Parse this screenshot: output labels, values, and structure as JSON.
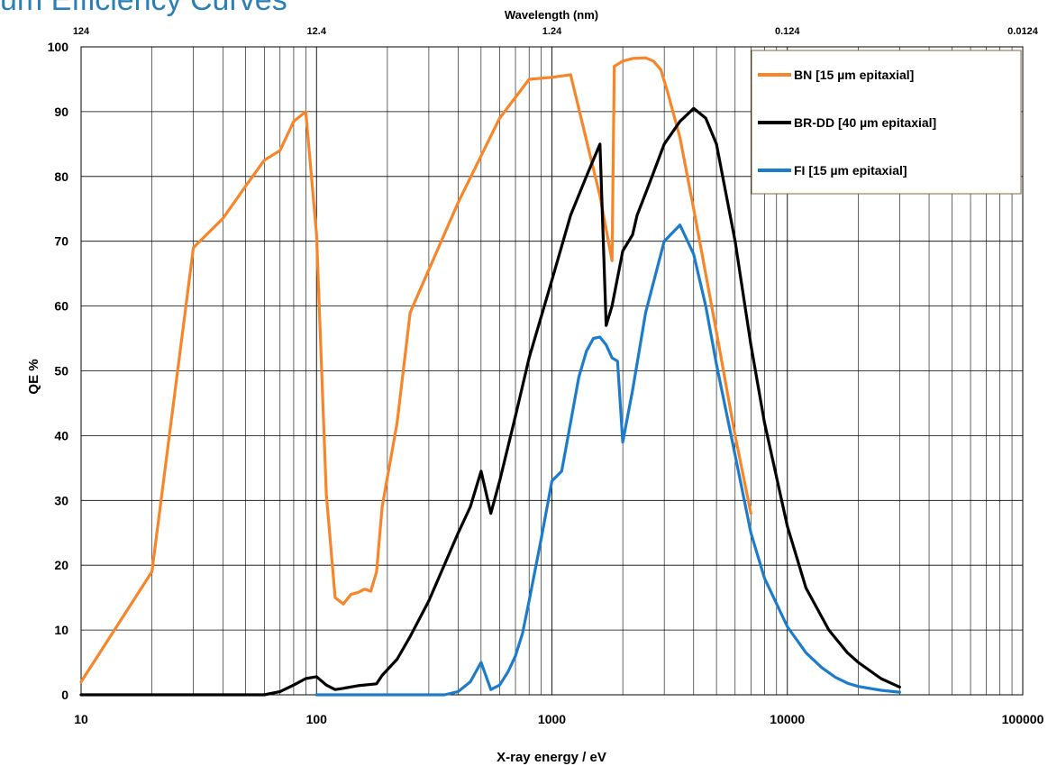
{
  "page_title": "um Efficiency Curves",
  "colors": {
    "bn": "#f7862a",
    "brdd": "#000000",
    "fi": "#1c7ccb",
    "grid": "#000000",
    "title": "#2b7fb8"
  },
  "chart_data": {
    "type": "line",
    "title": "",
    "xlabel": "X-ray energy / eV",
    "ylabel": "QE %",
    "x2label": "Wavelength (nm)",
    "xscale": "log",
    "xlim": [
      10,
      100000
    ],
    "ylim": [
      0,
      100
    ],
    "grid": true,
    "legend_position": "top-right",
    "x_tick_labels": [
      "10",
      "100",
      "1000",
      "10000",
      "100000"
    ],
    "y_tick_labels": [
      "0",
      "10",
      "20",
      "30",
      "40",
      "50",
      "60",
      "70",
      "80",
      "90",
      "100"
    ],
    "wavelength_tick_labels": [
      "124",
      "12.4",
      "1.24",
      "0.124",
      "0.0124"
    ],
    "series": [
      {
        "name": "BN [15 µm epitaxial]",
        "color": "#f7862a",
        "x": [
          10,
          20,
          30,
          40,
          50,
          60,
          70,
          80,
          90,
          100,
          110,
          120,
          130,
          140,
          150,
          160,
          170,
          180,
          190,
          220,
          250,
          400,
          600,
          800,
          1000,
          1200,
          1600,
          1800,
          1840,
          2000,
          2200,
          2500,
          2700,
          2900,
          3100,
          3500,
          4000,
          5000,
          6000,
          7000
        ],
        "values": [
          2,
          19,
          69,
          73.5,
          78.5,
          82.5,
          84,
          88.5,
          90,
          71,
          31,
          15,
          14,
          15.5,
          15.8,
          16.3,
          16,
          19,
          29,
          42,
          59,
          76,
          89,
          95,
          95.3,
          95.7,
          77,
          67,
          97,
          97.8,
          98.2,
          98.3,
          97.8,
          96.5,
          93,
          86,
          75,
          56,
          40,
          28
        ]
      },
      {
        "name": "BR-DD [40 µm epitaxial]",
        "color": "#000000",
        "x": [
          10,
          60,
          70,
          80,
          90,
          100,
          110,
          120,
          130,
          150,
          180,
          190,
          220,
          250,
          300,
          400,
          450,
          500,
          550,
          600,
          700,
          800,
          1000,
          1200,
          1400,
          1600,
          1700,
          1800,
          2000,
          2200,
          2300,
          2600,
          3000,
          3500,
          4000,
          4500,
          5000,
          6000,
          7000,
          8000,
          10000,
          12000,
          15000,
          18000,
          20000,
          25000,
          30000
        ],
        "values": [
          0,
          0,
          0.5,
          1.5,
          2.5,
          2.8,
          1.5,
          0.8,
          1,
          1.4,
          1.7,
          3,
          5.5,
          9,
          14.5,
          25,
          29,
          34.5,
          28,
          33,
          43,
          52,
          64,
          74,
          80,
          85,
          57,
          60,
          68.5,
          71,
          74,
          79,
          85,
          88.5,
          90.5,
          89,
          85,
          70,
          54,
          42,
          26,
          16.5,
          10,
          6.5,
          5,
          2.5,
          1.2
        ]
      },
      {
        "name": "FI [15 µm epitaxial]",
        "color": "#1c7ccb",
        "x": [
          100,
          350,
          400,
          450,
          500,
          550,
          600,
          650,
          700,
          750,
          800,
          900,
          1000,
          1100,
          1200,
          1300,
          1400,
          1500,
          1600,
          1700,
          1800,
          1900,
          2000,
          2200,
          2500,
          3000,
          3500,
          4000,
          4500,
          5000,
          6000,
          7000,
          8000,
          10000,
          12000,
          14000,
          16000,
          18000,
          20000,
          25000,
          30000
        ],
        "values": [
          0,
          0,
          0.5,
          2,
          5,
          0.8,
          1.5,
          3.5,
          6,
          9.5,
          14.5,
          24,
          33,
          34.5,
          42,
          49,
          53,
          55,
          55.2,
          54,
          52,
          51.5,
          39,
          47,
          59,
          70,
          72.5,
          68,
          60,
          51,
          37,
          25,
          18,
          10.5,
          6.5,
          4.2,
          2.7,
          1.8,
          1.3,
          0.7,
          0.4
        ]
      }
    ]
  }
}
